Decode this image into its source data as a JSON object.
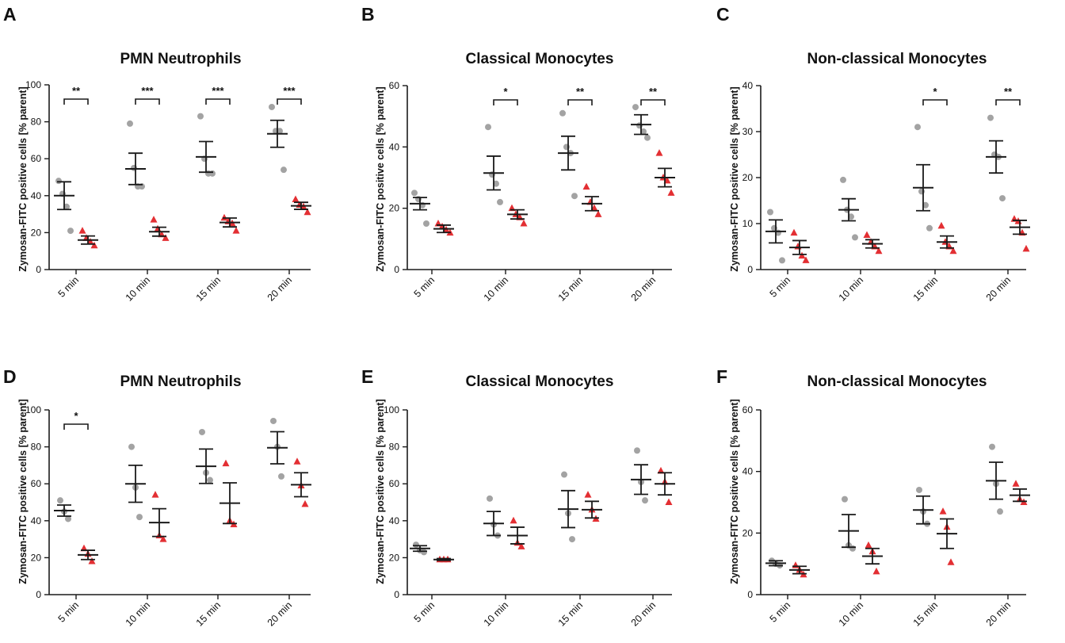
{
  "figure": {
    "colors": {
      "group_a": "#a3a3a3",
      "group_b": "#e32f33",
      "ink": "#1a1a1a"
    },
    "marker_shapes": {
      "group_a": "circle",
      "group_b": "triangle"
    }
  },
  "chart_data": [
    {
      "panel": "A",
      "type": "scatter",
      "title": "PMN Neutrophils",
      "ylabel": "Zymosan-FITC positive cells [% parent]",
      "xlabel": "",
      "ylim": [
        0,
        100
      ],
      "yticks": [
        0,
        20,
        40,
        60,
        80,
        100
      ],
      "categories": [
        "5 min",
        "10 min",
        "15 min",
        "20 min"
      ],
      "series": [
        {
          "name": "group 1 (grey circles)",
          "marker": "circle",
          "points": [
            [
              48,
              41,
              34,
              21
            ],
            [
              79,
              55,
              45,
              45
            ],
            [
              83,
              60,
              52,
              52
            ],
            [
              88,
              75,
              75,
              54
            ]
          ],
          "mean": [
            40,
            54.5,
            61,
            73.5
          ],
          "sem": [
            7.5,
            8.5,
            8.3,
            7.3
          ]
        },
        {
          "name": "group 2 (red triangles)",
          "marker": "triangle",
          "points": [
            [
              21,
              17,
              15,
              13
            ],
            [
              27,
              22,
              19,
              17
            ],
            [
              28,
              26,
              25,
              21
            ],
            [
              38,
              35,
              34,
              31
            ]
          ],
          "mean": [
            16,
            20.5,
            25.5,
            34.5
          ],
          "sem": [
            2.2,
            2.4,
            2.4,
            1.9
          ]
        }
      ],
      "significance": [
        {
          "category": "5 min",
          "label": "**"
        },
        {
          "category": "10 min",
          "label": "***"
        },
        {
          "category": "15 min",
          "label": "***"
        },
        {
          "category": "20 min",
          "label": "***"
        }
      ]
    },
    {
      "panel": "B",
      "type": "scatter",
      "title": "Classical Monocytes",
      "ylabel": "Zymosan-FITC positive cells [% parent]",
      "xlabel": "",
      "ylim": [
        0,
        60
      ],
      "yticks": [
        0,
        20,
        40,
        60
      ],
      "categories": [
        "5 min",
        "10 min",
        "15 min",
        "20 min"
      ],
      "series": [
        {
          "name": "group 1 (grey circles)",
          "marker": "circle",
          "points": [
            [
              25,
              23,
              21,
              15
            ],
            [
              46.5,
              31,
              28,
              22
            ],
            [
              51,
              40,
              38,
              24
            ],
            [
              53,
              47,
              45,
              43
            ]
          ],
          "mean": [
            21.5,
            31.5,
            38,
            47.3
          ],
          "sem": [
            2,
            5.5,
            5.5,
            3.2
          ]
        },
        {
          "name": "group 2 (red triangles)",
          "marker": "triangle",
          "points": [
            [
              15,
              14,
              13,
              12
            ],
            [
              20,
              18,
              17,
              15
            ],
            [
              27,
              22,
              20,
              18
            ],
            [
              38,
              30,
              29,
              25
            ]
          ],
          "mean": [
            13.3,
            18,
            21.5,
            30
          ],
          "sem": [
            1.2,
            1.5,
            2.3,
            3
          ]
        }
      ],
      "significance": [
        {
          "category": "10 min",
          "label": "*"
        },
        {
          "category": "15 min",
          "label": "**"
        },
        {
          "category": "20 min",
          "label": "**"
        }
      ]
    },
    {
      "panel": "C",
      "type": "scatter",
      "title": "Non-classical Monocytes",
      "ylabel": "Zymosan-FITC positive cells [% parent]",
      "xlabel": "",
      "ylim": [
        0,
        40
      ],
      "yticks": [
        0,
        10,
        20,
        30,
        40
      ],
      "categories": [
        "5 min",
        "10 min",
        "15 min",
        "20 min"
      ],
      "series": [
        {
          "name": "group 1 (grey circles)",
          "marker": "circle",
          "points": [
            [
              12.5,
              9,
              8,
              2
            ],
            [
              19.5,
              13,
              11.5,
              7
            ],
            [
              31,
              17,
              14,
              9
            ],
            [
              33,
              25,
              24.5,
              15.5
            ]
          ],
          "mean": [
            8.3,
            13,
            17.8,
            24.5
          ],
          "sem": [
            2.5,
            2.4,
            5,
            3.5
          ]
        },
        {
          "name": "group 2 (red triangles)",
          "marker": "triangle",
          "points": [
            [
              8,
              5,
              3,
              2
            ],
            [
              7.5,
              6,
              5,
              4
            ],
            [
              9.5,
              6,
              5,
              4
            ],
            [
              11,
              10.5,
              8,
              4.5
            ]
          ],
          "mean": [
            4.8,
            5.6,
            6,
            9.2
          ],
          "sem": [
            1.5,
            0.9,
            1.3,
            1.5
          ]
        }
      ],
      "significance": [
        {
          "category": "15 min",
          "label": "*"
        },
        {
          "category": "20 min",
          "label": "**"
        }
      ]
    },
    {
      "panel": "D",
      "type": "scatter",
      "title": "PMN Neutrophils",
      "ylabel": "Zymosan-FITC positive cells [% parent]",
      "xlabel": "",
      "ylim": [
        0,
        100
      ],
      "yticks": [
        0,
        20,
        40,
        60,
        80,
        100
      ],
      "categories": [
        "5 min",
        "10 min",
        "15 min",
        "20 min"
      ],
      "series": [
        {
          "name": "group 1 (grey circles)",
          "marker": "circle",
          "points": [
            [
              51,
              45,
              41
            ],
            [
              80,
              58,
              42
            ],
            [
              88,
              66,
              62
            ],
            [
              94,
              80,
              64
            ]
          ],
          "mean": [
            45.5,
            60,
            69.5,
            79.5
          ],
          "sem": [
            3,
            10,
            9.3,
            8.7
          ]
        },
        {
          "name": "group 2 (red triangles)",
          "marker": "triangle",
          "points": [
            [
              25,
              22,
              18
            ],
            [
              54,
              32,
              30
            ],
            [
              71,
              40,
              38
            ],
            [
              72,
              59,
              49
            ]
          ],
          "mean": [
            21.5,
            39,
            49.5,
            59.5
          ],
          "sem": [
            2.5,
            7.5,
            11,
            6.5
          ]
        }
      ],
      "significance": [
        {
          "category": "5 min",
          "label": "*"
        }
      ]
    },
    {
      "panel": "E",
      "type": "scatter",
      "title": "Classical Monocytes",
      "ylabel": "Zymosan-FITC positive cells [% parent]",
      "xlabel": "",
      "ylim": [
        0,
        100
      ],
      "yticks": [
        0,
        20,
        40,
        60,
        80,
        100
      ],
      "categories": [
        "5 min",
        "10 min",
        "15 min",
        "20 min"
      ],
      "series": [
        {
          "name": "group 1 (grey circles)",
          "marker": "circle",
          "points": [
            [
              27,
              24,
              23
            ],
            [
              52,
              38,
              32
            ],
            [
              65,
              44,
              30
            ],
            [
              78,
              61,
              51
            ]
          ],
          "mean": [
            25,
            38.5,
            46.3,
            62.3
          ],
          "sem": [
            1.5,
            6.5,
            10,
            8
          ]
        },
        {
          "name": "group 2 (red triangles)",
          "marker": "triangle",
          "points": [
            [
              19,
              19,
              19
            ],
            [
              40,
              28,
              26
            ],
            [
              54,
              46,
              41
            ],
            [
              67,
              61,
              50
            ]
          ],
          "mean": [
            19,
            32,
            46,
            60
          ],
          "sem": [
            0.5,
            4.5,
            4.5,
            6
          ]
        }
      ],
      "significance": []
    },
    {
      "panel": "F",
      "type": "scatter",
      "title": "Non-classical Monocytes",
      "ylabel": "Zymosan-FITC positive cells [% parent]",
      "xlabel": "",
      "ylim": [
        0,
        60
      ],
      "yticks": [
        0,
        20,
        40,
        60
      ],
      "categories": [
        "5 min",
        "10 min",
        "15 min",
        "20 min"
      ],
      "series": [
        {
          "name": "group 1 (grey circles)",
          "marker": "circle",
          "points": [
            [
              11,
              10,
              9.5
            ],
            [
              31,
              16,
              15
            ],
            [
              34,
              27,
              23
            ],
            [
              48,
              36,
              27
            ]
          ],
          "mean": [
            10.2,
            20.7,
            27.5,
            37
          ],
          "sem": [
            0.8,
            5.3,
            4.5,
            6
          ]
        },
        {
          "name": "group 2 (red triangles)",
          "marker": "triangle",
          "points": [
            [
              9.5,
              8,
              6.5
            ],
            [
              16,
              14,
              7.5
            ],
            [
              27,
              22,
              10.5
            ],
            [
              36,
              31,
              30
            ]
          ],
          "mean": [
            8,
            12.5,
            19.8,
            32.3
          ],
          "sem": [
            1.2,
            2.5,
            4.8,
            2
          ]
        }
      ],
      "significance": []
    }
  ]
}
